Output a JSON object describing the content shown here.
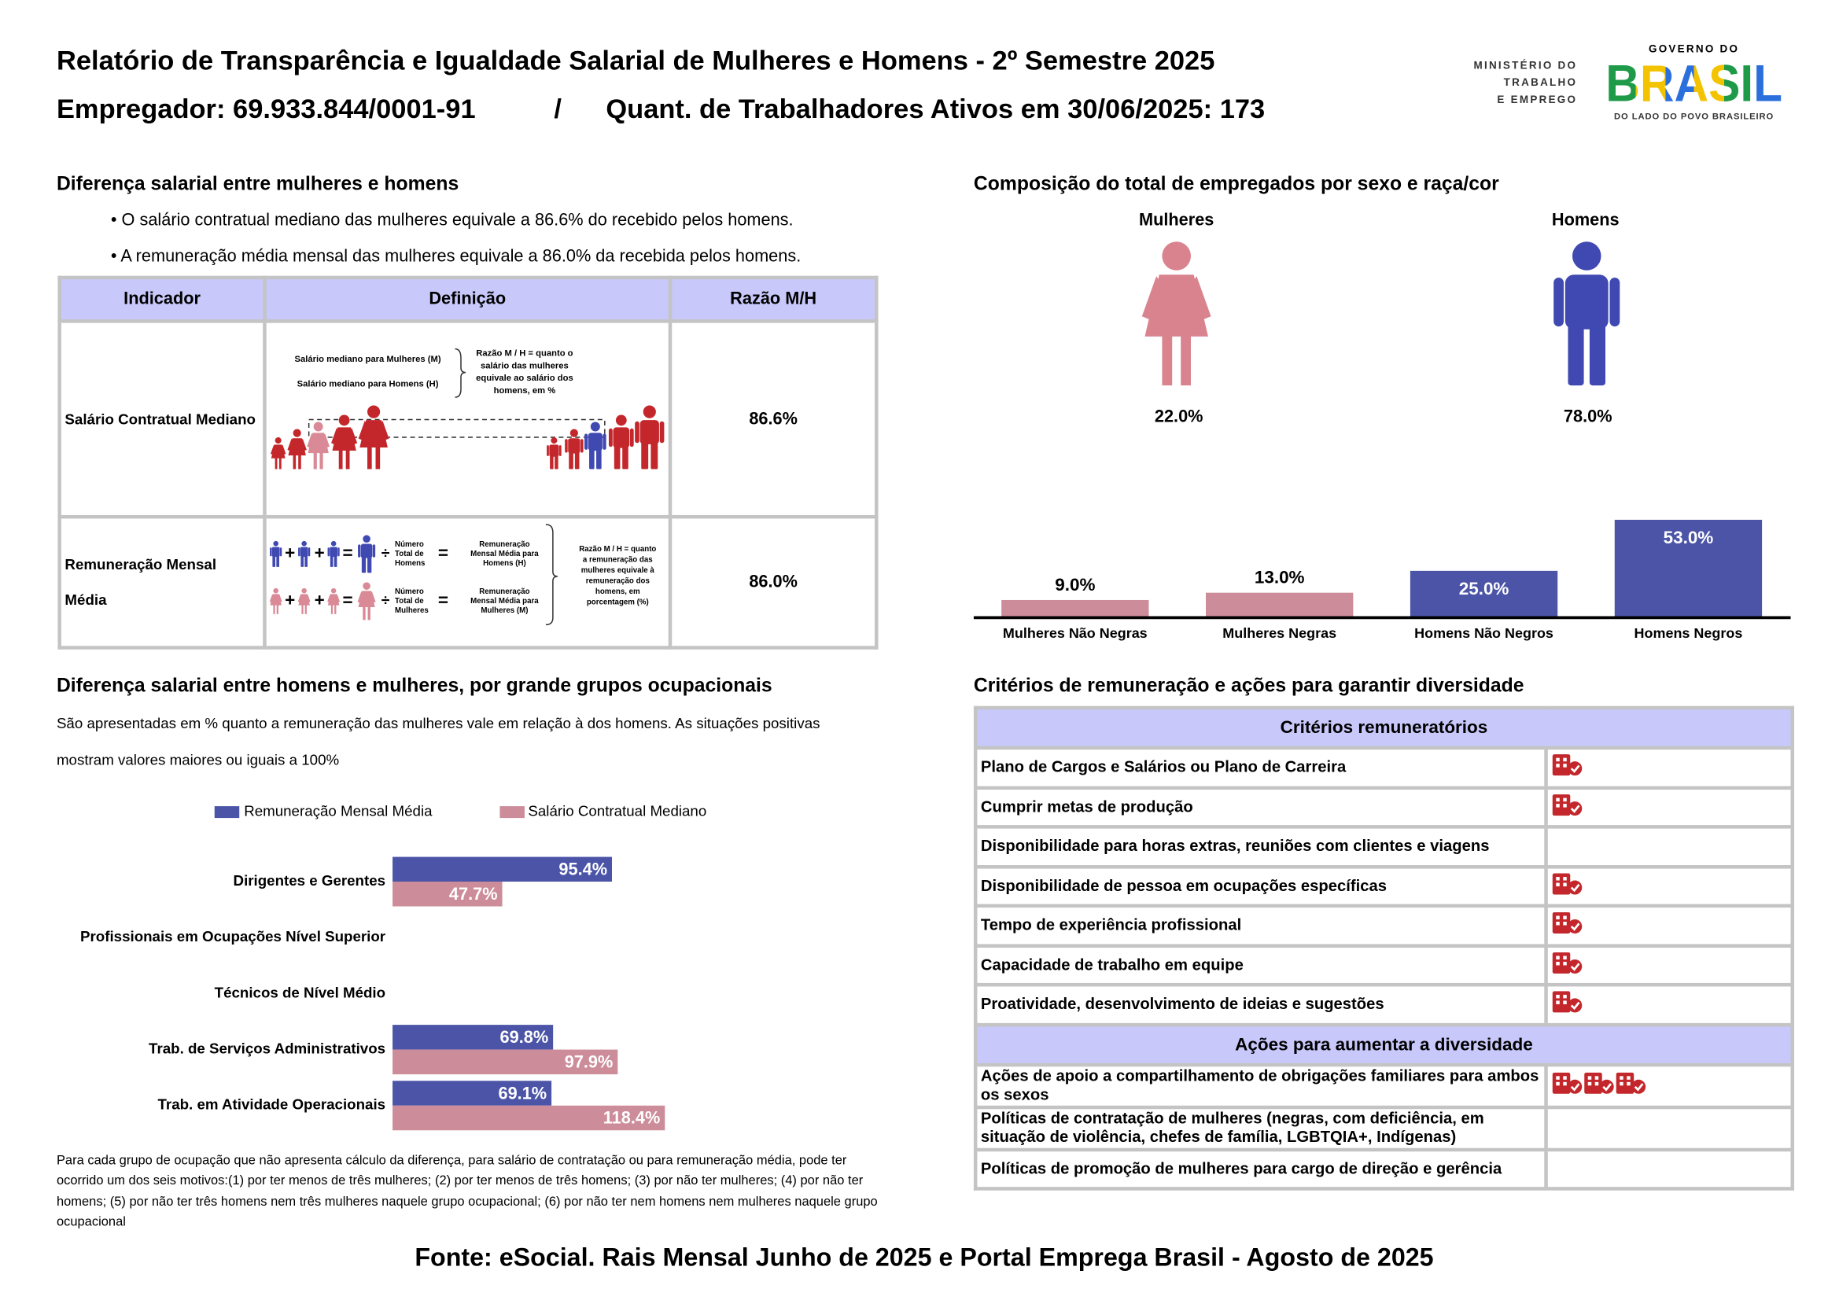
{
  "header": {
    "title": "Relatório de Transparência e Igualdade Salarial de Mulheres e Homens - 2º Semestre 2025",
    "employer": "Empregador: 69.933.844/0001-91",
    "separator": "/",
    "workers": "Quant. de Trabalhadores Ativos em 30/06/2025: 173",
    "ministry": [
      "MINISTÉRIO DO",
      "TRABALHO",
      "E EMPREGO"
    ],
    "government": "GOVERNO DO",
    "brasil": "BRASIL",
    "tagline": "DO LADO DO POVO BRASILEIRO"
  },
  "salary_gap": {
    "title": "Diferença salarial entre mulheres e homens",
    "bullets": [
      "• O salário contratual mediano das mulheres equivale a 86.6% do recebido pelos homens.",
      "• A remuneração média mensal das mulheres equivale a 86.0% da recebida pelos homens."
    ],
    "table": {
      "headers": [
        "Indicador",
        "Definição",
        "Razão M/H"
      ],
      "rows": [
        [
          "Salário Contratual Mediano",
          "86.6%"
        ],
        [
          "Remuneração Mensal Média",
          "86.0%"
        ]
      ]
    },
    "definition_median": {
      "women": "Salário mediano para Mulheres (M)",
      "men": "Salário mediano para Homens (H)",
      "ratio": [
        "Razão M / H = quanto o",
        "salário das mulheres",
        "equivale ao salário dos",
        "homens, em %"
      ]
    },
    "definition_mean": {
      "plus": "+",
      "equals": "=",
      "divide": "÷",
      "men_count": [
        "Número",
        "Total de",
        "Homens"
      ],
      "men_mean": [
        "Remuneração",
        "Mensal Média para",
        "Homens (H)"
      ],
      "women_count": [
        "Número",
        "Total de",
        "Mulheres"
      ],
      "women_mean": [
        "Remuneração",
        "Mensal Média para",
        "Mulheres (M)"
      ],
      "ratio": [
        "Razão M / H = quanto",
        "a remuneração das",
        "mulheres equivale à",
        "remuneração dos",
        "homens, em",
        "porcentagem (%)"
      ]
    }
  },
  "composition": {
    "title": "Composição do total de empregados por sexo e raça/cor",
    "women": "Mulheres",
    "men": "Homens",
    "women_share": "22.0%",
    "men_share": "78.0%"
  },
  "occupations": {
    "title": "Diferença salarial entre homens e mulheres, por grande grupos ocupacionais",
    "description": [
      "São apresentadas em % quanto a remuneração das mulheres vale em relação à dos homens. As situações positivas",
      "mostram valores maiores ou iguais a 100%"
    ],
    "footnote": "Para cada grupo de ocupação que não apresenta cálculo da diferença, para salário de contratação ou para remuneração média, pode ter ocorrido um dos seis motivos:(1) por ter menos de três mulheres; (2) por ter menos de três homens; (3) por não ter mulheres; (4) por não ter homens; (5) por não ter três homens nem três mulheres naquele grupo ocupacional; (6) por não ter nem homens nem mulheres naquele grupo ocupacional"
  },
  "criteria": {
    "title": "Critérios de remuneração e ações para garantir diversidade",
    "remuneration_header": "Critérios remuneratórios",
    "remuneration": [
      "Plano de Cargos e Salários ou Plano de Carreira",
      "Cumprir metas de produção",
      "Disponibilidade para horas extras, reuniões com clientes e viagens",
      "Disponibilidade de pessoa em ocupações específicas",
      "Tempo de experiência profissional",
      "Capacidade de trabalho em equipe",
      "Proatividade, desenvolvimento de ideias e sugestões"
    ],
    "actions_header": "Ações para aumentar a diversidade",
    "actions": [
      "Ações de apoio a compartilhamento de obrigações familiares para ambos os sexos",
      "Políticas de contratação de mulheres (negras, com deficiência, em situação de violência, chefes de família, LGBTQIA+, Indígenas)",
      "Políticas de promoção de mulheres para cargo de direção e gerência"
    ]
  },
  "source": "Fonte: eSocial. Rais Mensal Junho de 2025 e Portal Emprega Brasil - Agosto de 2025",
  "chart_data": [
    {
      "type": "bar",
      "categories": [
        "Mulheres Não Negras",
        "Mulheres Negras",
        "Homens Não Negros",
        "Homens Negros"
      ],
      "values": [
        9,
        13,
        25,
        53
      ],
      "value_labels": [
        "9.0%",
        "13.0%",
        "25.0%",
        "53.0%"
      ],
      "colors": [
        "#cc8c99",
        "#cc8c99",
        "#4b54a7",
        "#4b54a7"
      ]
    },
    {
      "type": "hbar",
      "legend": "top",
      "categories": [
        "Dirigentes e Gerentes",
        "Profissionais em Ocupações Nível Superior",
        "Técnicos de Nível Médio",
        "Trab. de Serviços Administrativos",
        "Trab. em Atividade Operacionais"
      ],
      "series": [
        {
          "name": "Remuneração Mensal Média",
          "color": "#4b54a7",
          "values": [
            95.4,
            null,
            null,
            69.8,
            69.1
          ],
          "value_labels": [
            "95.4%",
            null,
            null,
            "69.8%",
            "69.1%"
          ]
        },
        {
          "name": "Salário Contratual Mediano",
          "color": "#cc8c99",
          "values": [
            47.7,
            null,
            null,
            97.9,
            118.4
          ],
          "value_labels": [
            "47.7%",
            null,
            null,
            "97.9%",
            "118.4%"
          ]
        }
      ]
    }
  ]
}
